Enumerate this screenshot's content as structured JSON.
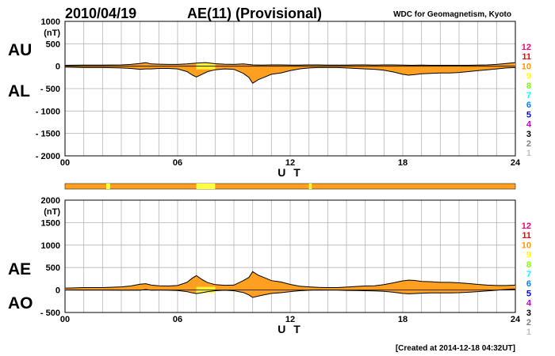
{
  "header": {
    "date": "2010/04/19",
    "title": "AE(11) (Provisional)",
    "source": "WDC for Geomagnetism, Kyoto"
  },
  "footer": {
    "created": "[Created at 2014-12-18 04:32UT]"
  },
  "stations": {
    "labels": [
      "12",
      "11",
      "10",
      "9",
      "8",
      "7",
      "6",
      "5",
      "4",
      "3",
      "2",
      "1"
    ],
    "colors": [
      "#ff0080",
      "#ff0000",
      "#ff9900",
      "#ffff00",
      "#80ff00",
      "#00ffff",
      "#0080ff",
      "#0000ff",
      "#cc00cc",
      "#000000",
      "#808080",
      "#c0c0c0"
    ]
  },
  "colors": {
    "fill": "#ffa020",
    "highlight": "#ffff40",
    "line": "#000000",
    "grid": "#b4b4b4"
  },
  "chart_data": [
    {
      "type": "area",
      "panel": "AU/AL",
      "left_labels": [
        "AU",
        "AL"
      ],
      "unit": "(nT)",
      "xlabel": "U T",
      "xlim": [
        0,
        24
      ],
      "ylim": [
        -2000,
        1000
      ],
      "yticks": [
        1000,
        500,
        0,
        -500,
        -1000,
        -1500,
        -2000
      ],
      "ytick_labels": [
        "1000",
        "500",
        "0",
        "- 500",
        "- 1000",
        "- 1500",
        "- 2000"
      ],
      "xticks": [
        0,
        6,
        12,
        18,
        24
      ],
      "xtick_labels": [
        "00",
        "06",
        "12",
        "18",
        "24"
      ],
      "grid": true,
      "series": [
        {
          "name": "AU",
          "x": [
            0,
            1,
            2,
            3,
            3.5,
            4,
            4.3,
            4.6,
            5,
            5.5,
            6,
            6.5,
            7,
            7.5,
            8,
            8.5,
            9,
            9.5,
            10,
            10.5,
            11,
            11.5,
            12,
            12.5,
            13,
            13.5,
            14,
            14.5,
            15,
            15.5,
            16,
            16.5,
            17,
            17.5,
            18,
            18.5,
            19,
            19.5,
            20,
            20.5,
            21,
            21.5,
            22,
            22.5,
            23,
            23.5,
            24
          ],
          "values": [
            20,
            25,
            25,
            30,
            40,
            60,
            80,
            50,
            45,
            40,
            40,
            50,
            70,
            80,
            55,
            45,
            40,
            50,
            30,
            25,
            30,
            30,
            25,
            25,
            30,
            30,
            25,
            25,
            25,
            30,
            30,
            25,
            30,
            30,
            25,
            20,
            25,
            20,
            20,
            20,
            20,
            20,
            25,
            30,
            40,
            60,
            80
          ]
        },
        {
          "name": "AL",
          "x": [
            0,
            1,
            2,
            3,
            3.5,
            4,
            4.3,
            4.6,
            5,
            5.5,
            6,
            6.5,
            6.8,
            7,
            7.3,
            7.6,
            8,
            8.5,
            9,
            9.5,
            9.8,
            10,
            10.3,
            10.6,
            11,
            11.5,
            12,
            12.5,
            13,
            13.5,
            14,
            14.5,
            15,
            15.5,
            16,
            16.5,
            17,
            17.5,
            18,
            18.3,
            18.6,
            19,
            19.5,
            20,
            20.5,
            21,
            21.5,
            22,
            22.5,
            23,
            23.5,
            24
          ],
          "values": [
            -20,
            -30,
            -30,
            -40,
            -50,
            -70,
            -60,
            -60,
            -50,
            -50,
            -60,
            -120,
            -200,
            -240,
            -180,
            -120,
            -80,
            -60,
            -70,
            -160,
            -250,
            -380,
            -300,
            -250,
            -180,
            -150,
            -100,
            -60,
            -40,
            -30,
            -30,
            -30,
            -40,
            -50,
            -60,
            -70,
            -90,
            -130,
            -180,
            -200,
            -190,
            -170,
            -160,
            -150,
            -150,
            -140,
            -120,
            -100,
            -80,
            -60,
            -40,
            -30
          ]
        }
      ]
    },
    {
      "type": "area",
      "panel": "AE/AO",
      "left_labels": [
        "AE",
        "AO"
      ],
      "unit": "(nT)",
      "xlabel": "U T",
      "xlim": [
        0,
        24
      ],
      "ylim": [
        -500,
        2000
      ],
      "yticks": [
        2000,
        1500,
        1000,
        500,
        0,
        -500
      ],
      "ytick_labels": [
        "2000",
        "1500",
        "1000",
        "500",
        "0",
        "- 500"
      ],
      "xticks": [
        0,
        6,
        12,
        18,
        24
      ],
      "xtick_labels": [
        "00",
        "06",
        "12",
        "18",
        "24"
      ],
      "grid": true,
      "series": [
        {
          "name": "AE",
          "x": [
            0,
            1,
            2,
            3,
            3.5,
            4,
            4.3,
            4.6,
            5,
            5.5,
            6,
            6.5,
            6.8,
            7,
            7.3,
            7.6,
            8,
            8.5,
            9,
            9.5,
            9.8,
            10,
            10.3,
            10.6,
            11,
            11.5,
            12,
            12.5,
            13,
            13.5,
            14,
            14.5,
            15,
            15.5,
            16,
            16.5,
            17,
            17.5,
            18,
            18.3,
            18.6,
            19,
            19.5,
            20,
            20.5,
            21,
            21.5,
            22,
            22.5,
            23,
            23.5,
            24
          ],
          "values": [
            40,
            55,
            55,
            70,
            90,
            130,
            140,
            110,
            95,
            90,
            100,
            170,
            270,
            320,
            235,
            165,
            120,
            105,
            110,
            210,
            280,
            410,
            330,
            280,
            210,
            180,
            125,
            85,
            70,
            60,
            55,
            55,
            65,
            80,
            90,
            95,
            120,
            160,
            205,
            220,
            215,
            190,
            185,
            170,
            170,
            160,
            145,
            125,
            110,
            100,
            100,
            110
          ]
        },
        {
          "name": "AO",
          "x": [
            0,
            1,
            2,
            3,
            3.5,
            4,
            4.3,
            4.6,
            5,
            5.5,
            6,
            6.5,
            6.8,
            7,
            7.3,
            7.6,
            8,
            8.5,
            9,
            9.5,
            9.8,
            10,
            10.3,
            10.6,
            11,
            11.5,
            12,
            12.5,
            13,
            13.5,
            14,
            14.5,
            15,
            15.5,
            16,
            16.5,
            17,
            17.5,
            18,
            18.3,
            18.6,
            19,
            19.5,
            20,
            20.5,
            21,
            21.5,
            22,
            22.5,
            23,
            23.5,
            24
          ],
          "values": [
            0,
            -3,
            -3,
            -5,
            -5,
            -5,
            10,
            -5,
            -3,
            -5,
            -10,
            -35,
            -65,
            -80,
            -60,
            -35,
            -15,
            -5,
            -15,
            -55,
            -110,
            -165,
            -135,
            -110,
            -75,
            -60,
            -35,
            -15,
            -5,
            0,
            -2,
            -3,
            -8,
            -10,
            -15,
            -20,
            -30,
            -50,
            -75,
            -85,
            -80,
            -70,
            -65,
            -65,
            -65,
            -60,
            -50,
            -35,
            -20,
            -5,
            10,
            25
          ]
        }
      ],
      "station_count_band": {
        "xlim": [
          0,
          24
        ],
        "stations_count_default": 10,
        "highlight_ranges_stations_9": [
          [
            2.2,
            2.4
          ],
          [
            7.0,
            8.0
          ],
          [
            13.0,
            13.15
          ]
        ]
      }
    }
  ]
}
